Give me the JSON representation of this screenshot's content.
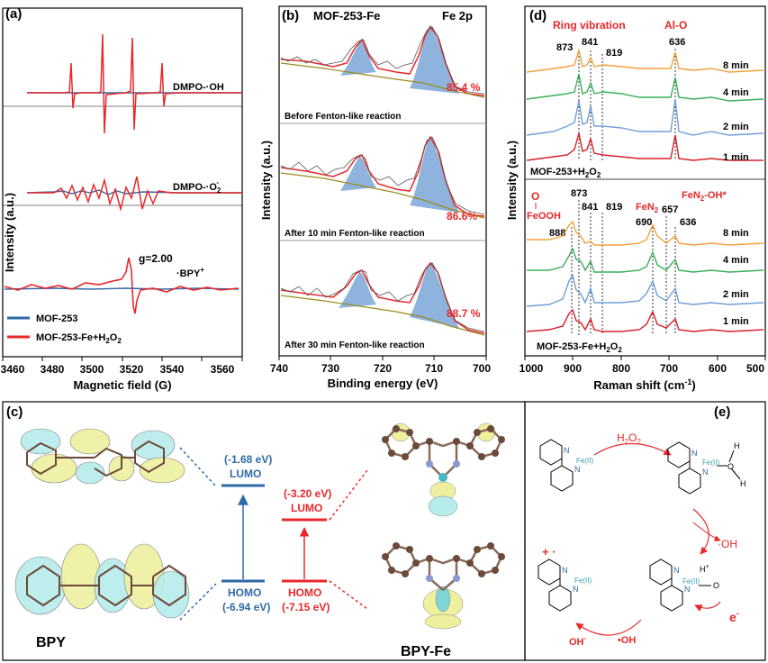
{
  "panel_labels": {
    "a": "(a)",
    "b": "(b)",
    "c": "(c)",
    "d": "(d)",
    "e": "(e)"
  },
  "colors": {
    "blue": "#2e6aa8",
    "red": "#e8282b",
    "olive": "#9a8a1f",
    "fill": "#7aa6d6",
    "orange": "#f5a03a",
    "green": "#38b05a",
    "lightblue": "#6f9fd8",
    "darkred": "#d8202a"
  },
  "panel_a": {
    "ylabel": "Intensity  (a.u.)",
    "xlabel": "Magnetic  field (G)",
    "xticks": [
      "3460",
      "3480",
      "3500",
      "3520",
      "3540",
      "3560"
    ],
    "labels": {
      "oh": "DMPO-·OH",
      "o2": "DMPO-·O",
      "o2_sub": "2",
      "o2_sup": "-",
      "g": "g=2.00",
      "bpy": "·BPY",
      "bpy_sup": "+"
    },
    "legend": [
      {
        "name": "MOF-253",
        "color": "#2e6aa8"
      },
      {
        "name": "MOF-253-Fe+H",
        "sub": "2",
        "tail": "O",
        "sub2": "2",
        "color": "#e8282b"
      }
    ]
  },
  "panel_b": {
    "title": "MOF-253-Fe",
    "tag": "Fe 2p",
    "ylabel": "Intensity  (a.u.)",
    "xlabel": "Binding energy (eV)",
    "xticks": [
      "740",
      "730",
      "720",
      "710",
      "700"
    ],
    "sub_panels": [
      {
        "caption": "Before Fenton-like reaction",
        "percent": "85.4 %"
      },
      {
        "caption": "After 10 min Fenton-like reaction",
        "percent": "86.6%"
      },
      {
        "caption": "After 30 min Fenton-like reaction",
        "percent": "88.7 %"
      }
    ]
  },
  "panel_d": {
    "ylabel": "Intensity  (a.u.)",
    "xlabel": "Raman shift (cm",
    "xlabel_sup": "-1",
    "xlabel_end": ")",
    "xticks": [
      "1000",
      "900",
      "800",
      "700",
      "600",
      "500"
    ],
    "top": {
      "ring": "Ring vibration",
      "alo": "Al-O",
      "peaks": [
        "873",
        "841",
        "819",
        "636"
      ],
      "times": [
        "8 min",
        "4 min",
        "2 min",
        "1 min"
      ],
      "sample": "MOF-253+H",
      "sample_sub": "2",
      "sample_tail": "O",
      "sample_sub2": "2"
    },
    "bottom": {
      "o": "O",
      "feooh": "FeOOH",
      "fen2": "FeN",
      "fen2_sub": "2",
      "fen2oh": "FeN",
      "fen2oh_sub": "2",
      "fen2oh_tail": "-OH*",
      "peaks": [
        "873",
        "888",
        "841",
        "819",
        "690",
        "657",
        "636"
      ],
      "times": [
        "8 min",
        "4 min",
        "2 min",
        "1 min"
      ],
      "sample": "MOF-253-Fe+H",
      "sample_sub": "2",
      "sample_tail": "O",
      "sample_sub2": "2"
    }
  },
  "panel_c": {
    "bpy": "BPY",
    "bpyfe": "BPY-Fe",
    "lumo_bpy": "(-1.68 eV)",
    "lumo_label": "LUMO",
    "homo_label": "HOMO",
    "homo_bpy": "(-6.94 eV)",
    "lumo_fe": "(-3.20 eV)",
    "homo_fe": "(-7.15 eV)"
  },
  "panel_e": {
    "h2o2": "H",
    "h2o2_sub": "2",
    "h2o2_tail": "O",
    "h2o2_sub2": "2",
    "oh_rad": "·OH",
    "electron": "e",
    "electron_sup": "-",
    "oh_minus": "OH",
    "oh_minus_sup": "-",
    "oh_star": "•OH",
    "fe": "Fe(II)",
    "n": "N",
    "h": "H",
    "o": "O",
    "hplus": "H",
    "hplus_sup": "+",
    "radical": "+ ·"
  }
}
